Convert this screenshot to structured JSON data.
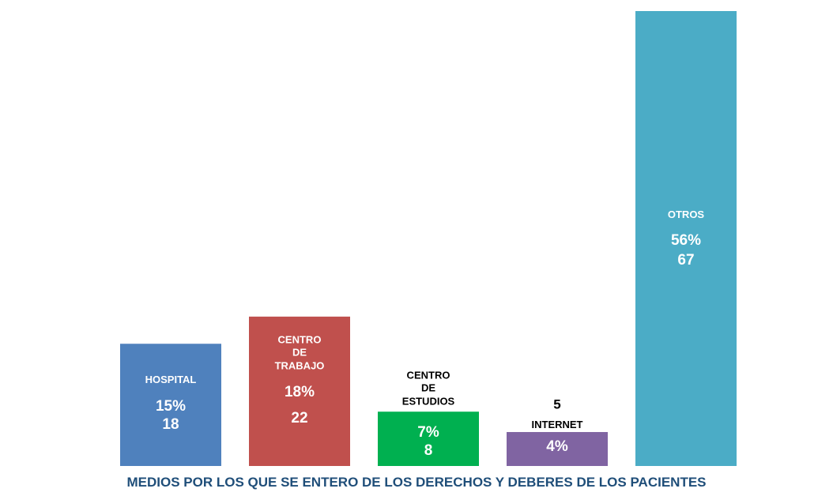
{
  "chart_data": {
    "type": "bar",
    "title": "MEDIOS POR LOS QUE SE ENTERO DE LOS DERECHOS Y DEBERES DE LOS PACIENTES",
    "categories": [
      "HOSPITAL",
      "CENTRO DE TRABAJO",
      "CENTRO DE ESTUDIOS",
      "INTERNET",
      "OTROS"
    ],
    "values": [
      18,
      22,
      8,
      5,
      67
    ],
    "percentages": [
      15,
      18,
      7,
      4,
      56
    ],
    "percentage_labels": [
      "15%",
      "18%",
      "7%",
      "4%",
      "56%"
    ],
    "colors": [
      "#4f81bd",
      "#c0504d",
      "#00b050",
      "#8064a2",
      "#4bacc6"
    ]
  }
}
